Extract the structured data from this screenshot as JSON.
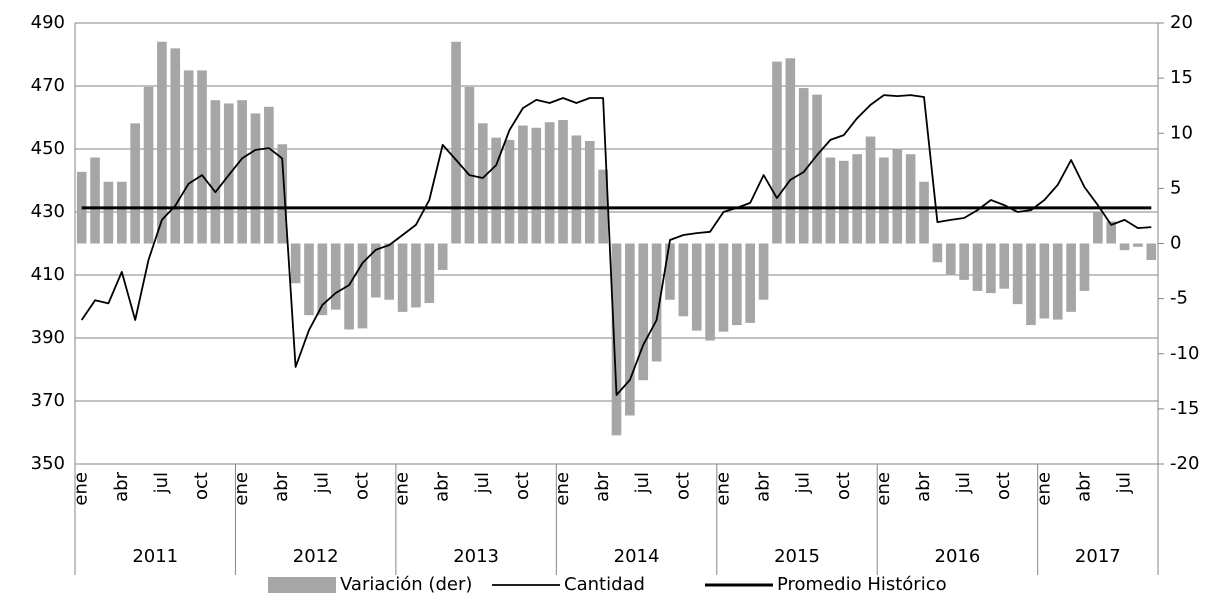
{
  "chart_data": {
    "type": "bar",
    "categories": [
      "ene",
      null,
      null,
      "abr",
      null,
      null,
      "jul",
      null,
      null,
      "oct",
      null,
      null,
      "ene",
      null,
      null,
      "abr",
      null,
      null,
      "jul",
      null,
      null,
      "oct",
      null,
      null,
      "ene",
      null,
      null,
      "abr",
      null,
      null,
      "jul",
      null,
      null,
      "oct",
      null,
      null,
      "ene",
      null,
      null,
      "abr",
      null,
      null,
      "jul",
      null,
      null,
      "oct",
      null,
      null,
      "ene",
      null,
      null,
      "abr",
      null,
      null,
      "jul",
      null,
      null,
      "oct",
      null,
      null,
      "ene",
      null,
      null,
      "abr",
      null,
      null,
      "jul",
      null,
      null,
      "oct",
      null,
      null,
      "ene",
      null,
      null,
      "abr",
      null,
      null,
      "jul",
      null,
      null
    ],
    "years": [
      "2011",
      "2012",
      "2013",
      "2014",
      "2015",
      "2016",
      "2017"
    ],
    "series": [
      {
        "name": "Variación (der)",
        "type": "bar",
        "axis": "y2",
        "color": "#a6a6a6",
        "values": [
          6.5,
          7.8,
          5.6,
          5.6,
          10.9,
          14.2,
          18.3,
          17.7,
          15.7,
          15.7,
          13.0,
          12.7,
          13.0,
          11.8,
          12.4,
          9.0,
          -3.6,
          -6.5,
          -6.5,
          -6.0,
          -7.8,
          -7.7,
          -4.9,
          -5.1,
          -6.2,
          -5.8,
          -5.4,
          -2.4,
          18.3,
          14.2,
          10.9,
          9.6,
          9.4,
          10.7,
          10.5,
          11.0,
          11.2,
          9.8,
          9.3,
          6.7,
          -17.4,
          -15.6,
          -12.4,
          -10.7,
          -5.1,
          -6.6,
          -7.9,
          -8.8,
          -8.0,
          -7.4,
          -7.2,
          -5.1,
          16.5,
          16.8,
          14.1,
          13.5,
          7.8,
          7.5,
          8.1,
          9.7,
          7.8,
          8.6,
          8.1,
          5.6,
          -1.7,
          -2.9,
          -3.3,
          -4.3,
          -4.5,
          -4.1,
          -5.5,
          -7.4,
          -6.8,
          -6.9,
          -6.2,
          -4.3,
          2.8,
          2.0,
          -0.6,
          -0.3,
          -1.5
        ]
      },
      {
        "name": "Cantidad",
        "type": "line",
        "color": "#000000",
        "values": [
          395.7,
          402,
          401,
          411,
          395.7,
          414.8,
          427.5,
          432,
          439,
          441.7,
          436.3,
          441.7,
          447,
          449.7,
          450.3,
          447,
          380.8,
          392.5,
          400.5,
          404.3,
          406.8,
          413.8,
          418,
          419.5,
          422.7,
          425.9,
          433.8,
          451.3,
          446.5,
          441.7,
          440.8,
          444.9,
          456,
          463,
          465.6,
          464.6,
          466.2,
          464.6,
          466.2,
          466.2,
          371.9,
          376.7,
          387.8,
          395.7,
          421.1,
          422.7,
          423.3,
          423.7,
          430,
          431.3,
          432.9,
          441.7,
          434.4,
          440.2,
          442.7,
          448.1,
          452.9,
          454.4,
          459.8,
          464,
          467.1,
          466.8,
          467.1,
          466.5,
          426.8,
          427.5,
          428.1,
          430.6,
          433.8,
          432.2,
          430,
          430.6,
          433.8,
          438.6,
          446.5,
          437.9,
          432.2,
          425.9,
          427.5,
          424.9,
          425.2
        ]
      },
      {
        "name": "Promedio Histórico",
        "type": "line",
        "color": "#000000",
        "values": [
          431.3,
          431.3,
          431.3,
          431.3,
          431.3,
          431.3,
          431.3,
          431.3,
          431.3,
          431.3,
          431.3,
          431.3,
          431.3,
          431.3,
          431.3,
          431.3,
          431.3,
          431.3,
          431.3,
          431.3,
          431.3,
          431.3,
          431.3,
          431.3,
          431.3,
          431.3,
          431.3,
          431.3,
          431.3,
          431.3,
          431.3,
          431.3,
          431.3,
          431.3,
          431.3,
          431.3,
          431.3,
          431.3,
          431.3,
          431.3,
          431.3,
          431.3,
          431.3,
          431.3,
          431.3,
          431.3,
          431.3,
          431.3,
          431.3,
          431.3,
          431.3,
          431.3,
          431.3,
          431.3,
          431.3,
          431.3,
          431.3,
          431.3,
          431.3,
          431.3,
          431.3,
          431.3,
          431.3,
          431.3,
          431.3,
          431.3,
          431.3,
          431.3,
          431.3,
          431.3,
          431.3,
          431.3,
          431.3,
          431.3,
          431.3,
          431.3,
          431.3,
          431.3,
          431.3,
          431.3,
          431.3
        ]
      }
    ],
    "ylim": [
      350,
      490
    ],
    "yticks": [
      350,
      370,
      390,
      410,
      430,
      450,
      470,
      490
    ],
    "y2lim": [
      -20,
      20
    ],
    "y2ticks": [
      -20,
      -15,
      -10,
      -5,
      0,
      5,
      10,
      15,
      20
    ],
    "grid": true,
    "legend": "bottom"
  }
}
